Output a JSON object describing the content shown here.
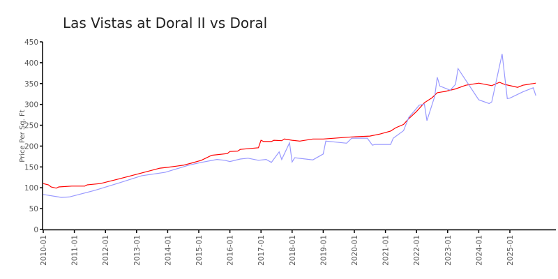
{
  "chart_data": {
    "type": "line",
    "title": "Las Vistas at Doral II vs Doral",
    "xlabel": "",
    "ylabel": "Price Per Sq. Ft",
    "ylim": [
      0,
      450
    ],
    "xlim": [
      "2010-01",
      "2026-06"
    ],
    "grid": false,
    "y_ticks": [
      "0",
      "50",
      "100",
      "150",
      "200",
      "250",
      "300",
      "350",
      "400",
      "450"
    ],
    "x_ticks": [
      "2010-01",
      "2011-01",
      "2012-01",
      "2013-01",
      "2014-01",
      "2015-01",
      "2016-01",
      "2017-01",
      "2018-01",
      "2019-01",
      "2020-01",
      "2021-01",
      "2022-01",
      "2023-01",
      "2024-01",
      "2025-01"
    ],
    "series": [
      {
        "color": "#ff0000",
        "points": [
          [
            "2010-01",
            110
          ],
          [
            "2010-03",
            107
          ],
          [
            "2010-04",
            102
          ],
          [
            "2010-06",
            99
          ],
          [
            "2010-07",
            102
          ],
          [
            "2010-12",
            104
          ],
          [
            "2011-05",
            104
          ],
          [
            "2011-06",
            107
          ],
          [
            "2011-11",
            110
          ],
          [
            "2012-06",
            121
          ],
          [
            "2013-02",
            134
          ],
          [
            "2013-10",
            147
          ],
          [
            "2014-01",
            149
          ],
          [
            "2014-07",
            154
          ],
          [
            "2014-10",
            159
          ],
          [
            "2015-02",
            166
          ],
          [
            "2015-06",
            178
          ],
          [
            "2015-12",
            182
          ],
          [
            "2016-01",
            187
          ],
          [
            "2016-04",
            188
          ],
          [
            "2016-05",
            192
          ],
          [
            "2016-12",
            196
          ],
          [
            "2017-01",
            214
          ],
          [
            "2017-02",
            211
          ],
          [
            "2017-05",
            211
          ],
          [
            "2017-06",
            214
          ],
          [
            "2017-09",
            213
          ],
          [
            "2017-10",
            217
          ],
          [
            "2018-01",
            214
          ],
          [
            "2018-04",
            212
          ],
          [
            "2018-09",
            217
          ],
          [
            "2019-01",
            217
          ],
          [
            "2019-12",
            222
          ],
          [
            "2020-07",
            224
          ],
          [
            "2020-11",
            229
          ],
          [
            "2021-03",
            236
          ],
          [
            "2021-05",
            244
          ],
          [
            "2021-08",
            252
          ],
          [
            "2021-10",
            266
          ],
          [
            "2022-01",
            283
          ],
          [
            "2022-04",
            304
          ],
          [
            "2022-07",
            316
          ],
          [
            "2022-09",
            328
          ],
          [
            "2022-12",
            331
          ],
          [
            "2023-04",
            337
          ],
          [
            "2023-08",
            346
          ],
          [
            "2024-01",
            351
          ],
          [
            "2024-06",
            345
          ],
          [
            "2024-09",
            353
          ],
          [
            "2024-11",
            348
          ],
          [
            "2025-04",
            341
          ],
          [
            "2025-06",
            346
          ],
          [
            "2025-11",
            351
          ]
        ]
      },
      {
        "color": "#9999ff",
        "points": [
          [
            "2010-01",
            84
          ],
          [
            "2010-08",
            77
          ],
          [
            "2010-11",
            78
          ],
          [
            "2011-09",
            94
          ],
          [
            "2012-06",
            111
          ],
          [
            "2013-03",
            129
          ],
          [
            "2013-12",
            137
          ],
          [
            "2014-09",
            154
          ],
          [
            "2015-02",
            161
          ],
          [
            "2015-08",
            168
          ],
          [
            "2015-11",
            166
          ],
          [
            "2016-01",
            163
          ],
          [
            "2016-05",
            169
          ],
          [
            "2016-08",
            171
          ],
          [
            "2016-12",
            166
          ],
          [
            "2017-03",
            168
          ],
          [
            "2017-05",
            161
          ],
          [
            "2017-08",
            186
          ],
          [
            "2017-09",
            168
          ],
          [
            "2017-12",
            208
          ],
          [
            "2018-01",
            162
          ],
          [
            "2018-02",
            172
          ],
          [
            "2018-09",
            167
          ],
          [
            "2019-01",
            181
          ],
          [
            "2019-02",
            212
          ],
          [
            "2019-10",
            207
          ],
          [
            "2019-12",
            219
          ],
          [
            "2020-06",
            219
          ],
          [
            "2020-08",
            202
          ],
          [
            "2020-09",
            204
          ],
          [
            "2021-03",
            204
          ],
          [
            "2021-04",
            219
          ],
          [
            "2021-08",
            237
          ],
          [
            "2021-10",
            269
          ],
          [
            "2021-12",
            283
          ],
          [
            "2022-02",
            298
          ],
          [
            "2022-04",
            301
          ],
          [
            "2022-05",
            261
          ],
          [
            "2022-08",
            319
          ],
          [
            "2022-09",
            365
          ],
          [
            "2022-10",
            344
          ],
          [
            "2023-02",
            334
          ],
          [
            "2023-04",
            348
          ],
          [
            "2023-05",
            386
          ],
          [
            "2024-01",
            311
          ],
          [
            "2024-05",
            302
          ],
          [
            "2024-06",
            306
          ],
          [
            "2024-10",
            421
          ],
          [
            "2024-12",
            314
          ],
          [
            "2025-01",
            315
          ],
          [
            "2025-06",
            330
          ],
          [
            "2025-10",
            340
          ],
          [
            "2025-11",
            321
          ]
        ]
      }
    ]
  }
}
